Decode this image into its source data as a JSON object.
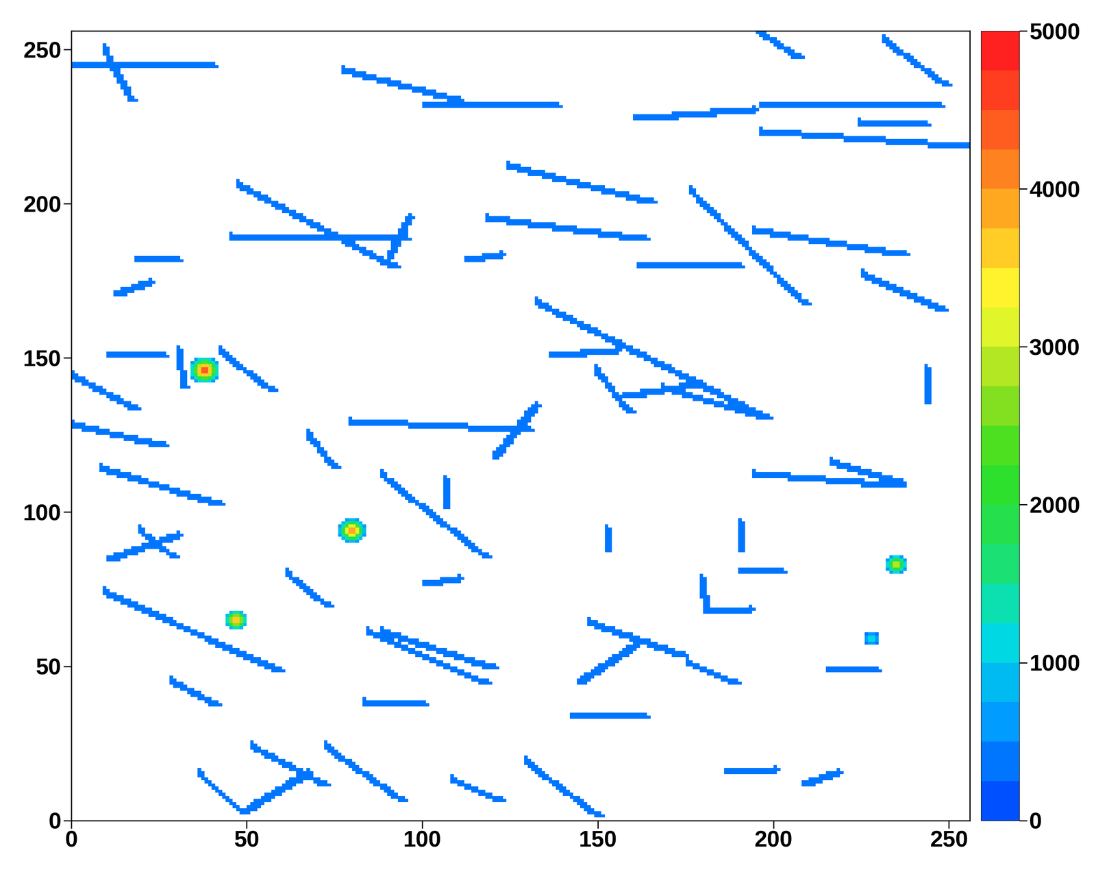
{
  "chart_data": {
    "type": "heatmap",
    "xlim": [
      0,
      256
    ],
    "ylim": [
      0,
      256
    ],
    "xticks": [
      0,
      50,
      100,
      150,
      200,
      250
    ],
    "yticks": [
      0,
      50,
      100,
      150,
      200,
      250
    ],
    "colorbar_range": [
      0,
      5000
    ],
    "colorbar_ticks": [
      0,
      1000,
      2000,
      3000,
      4000,
      5000
    ],
    "track_value": 300,
    "tracks": [
      [
        9,
        74,
        59,
        48
      ],
      [
        88,
        112,
        118,
        85
      ],
      [
        176,
        204,
        209,
        167
      ],
      [
        132,
        168,
        198,
        130
      ],
      [
        45,
        189,
        95,
        188
      ],
      [
        47,
        206,
        92,
        179
      ],
      [
        8,
        114,
        42,
        102
      ],
      [
        36,
        15,
        49,
        2
      ],
      [
        129,
        19,
        150,
        1
      ],
      [
        72,
        24,
        94,
        6
      ],
      [
        51,
        24,
        72,
        11
      ],
      [
        50,
        3,
        67,
        15
      ],
      [
        77,
        243,
        110,
        233
      ],
      [
        100,
        231,
        138,
        231
      ],
      [
        0,
        244,
        40,
        244
      ],
      [
        9,
        250,
        17,
        233
      ],
      [
        195,
        256,
        207,
        247
      ],
      [
        231,
        253,
        249,
        238
      ],
      [
        196,
        231,
        247,
        231
      ],
      [
        196,
        223,
        256,
        218
      ],
      [
        224,
        226,
        243,
        225
      ],
      [
        160,
        227,
        194,
        230
      ],
      [
        194,
        191,
        237,
        183
      ],
      [
        161,
        179,
        190,
        179
      ],
      [
        225,
        177,
        248,
        165
      ],
      [
        149,
        146,
        159,
        132
      ],
      [
        157,
        137,
        179,
        141
      ],
      [
        136,
        150,
        155,
        152
      ],
      [
        118,
        195,
        163,
        188
      ],
      [
        124,
        212,
        165,
        200
      ],
      [
        112,
        181,
        122,
        183
      ],
      [
        67,
        125,
        75,
        114
      ],
      [
        79,
        129,
        130,
        126
      ],
      [
        120,
        117,
        132,
        134
      ],
      [
        194,
        112,
        236,
        108
      ],
      [
        216,
        116,
        236,
        109
      ],
      [
        0,
        144,
        18,
        133
      ],
      [
        0,
        128,
        26,
        121
      ],
      [
        10,
        150,
        26,
        150
      ],
      [
        42,
        152,
        57,
        139
      ],
      [
        10,
        84,
        30,
        92
      ],
      [
        19,
        94,
        29,
        85
      ],
      [
        18,
        181,
        30,
        181
      ],
      [
        12,
        170,
        22,
        174
      ],
      [
        84,
        61,
        118,
        44
      ],
      [
        88,
        61,
        120,
        49
      ],
      [
        147,
        64,
        174,
        53
      ],
      [
        83,
        38,
        100,
        37
      ],
      [
        142,
        33,
        163,
        33
      ],
      [
        175,
        51,
        189,
        44
      ],
      [
        108,
        13,
        122,
        6
      ],
      [
        100,
        76,
        110,
        78
      ],
      [
        179,
        78,
        181,
        67
      ],
      [
        182,
        67,
        193,
        68
      ],
      [
        190,
        80,
        202,
        80
      ],
      [
        215,
        48,
        229,
        48
      ],
      [
        186,
        15,
        200,
        16
      ],
      [
        208,
        11,
        218,
        15
      ],
      [
        61,
        80,
        73,
        69
      ],
      [
        28,
        45,
        41,
        37
      ],
      [
        106,
        110,
        106,
        101
      ],
      [
        152,
        94,
        152,
        87
      ],
      [
        190,
        96,
        190,
        87
      ],
      [
        243,
        146,
        243,
        135
      ],
      [
        30,
        152,
        32,
        140
      ],
      [
        144,
        44,
        160,
        56
      ],
      [
        168,
        140,
        198,
        130
      ],
      [
        96,
        195,
        90,
        182
      ]
    ],
    "spots": [
      {
        "x": 38,
        "y": 146,
        "radius": 4.5,
        "peak": 4500
      },
      {
        "x": 80,
        "y": 94,
        "radius": 4,
        "peak": 4200
      },
      {
        "x": 235,
        "y": 83,
        "radius": 3.5,
        "peak": 3000
      },
      {
        "x": 47,
        "y": 65,
        "radius": 3.5,
        "peak": 4000
      },
      {
        "x": 228,
        "y": 59,
        "radius": 2.5,
        "peak": 1200
      }
    ]
  }
}
